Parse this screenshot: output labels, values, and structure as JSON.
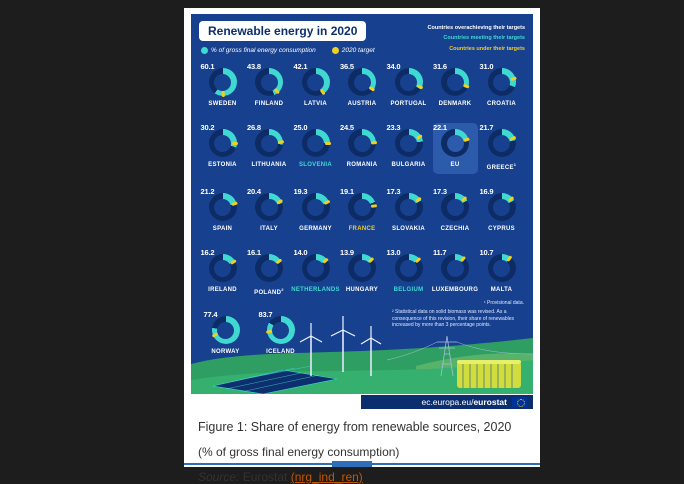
{
  "window": {
    "background": "#1d1d1d",
    "page_background": "#ffffff"
  },
  "infographic": {
    "title": "Renewable energy in 2020",
    "colors": {
      "panel": "#17418f",
      "teal": "#3fd9d2",
      "yellow": "#f2cf1d",
      "track": "#0d2c66",
      "eu_highlight": "#2d5bab",
      "white": "#ffffff"
    },
    "legend": [
      {
        "label": "% of gross final energy consumption",
        "color": "#3fd9d2"
      },
      {
        "label": "2020 target",
        "color": "#f2cf1d"
      }
    ],
    "status_legend": [
      {
        "label": "Countries overachieving their targets",
        "color": "#ffffff"
      },
      {
        "label": "Countries meeting their targets",
        "color": "#3fd9d2"
      },
      {
        "label": "Countries under their targets",
        "color": "#f2cf1d"
      }
    ],
    "footnotes": [
      "¹ Provisional data.",
      "² Statistical data on solid biomass was revised. As a consequence of this revision, their share of renewables increased by more than 3 percentage points."
    ],
    "footer_bar": {
      "prefix": "ec.europa.eu/",
      "bold": "eurostat"
    }
  },
  "caption": {
    "figure_line": "Figure 1: Share of energy from renewable sources, 2020",
    "subtitle": "(% of gross final energy consumption)",
    "source_label": "Source:",
    "source_name": "Eurostat",
    "source_link": "(nrg_ind_ren)"
  },
  "chart_data": {
    "type": "pie",
    "variant": "donut-gauge-grid",
    "title": "Renewable energy in 2020",
    "unit": "% of gross final energy consumption",
    "target_legend": "2020 target",
    "rows": [
      [
        {
          "name": "SWEDEN",
          "value": 60.1,
          "target": 49
        },
        {
          "name": "FINLAND",
          "value": 43.8,
          "target": 38
        },
        {
          "name": "LATVIA",
          "value": 42.1,
          "target": 40
        },
        {
          "name": "AUSTRIA",
          "value": 36.5,
          "target": 34
        },
        {
          "name": "PORTUGAL",
          "value": 34.0,
          "target": 31
        },
        {
          "name": "DENMARK",
          "value": 31.6,
          "target": 30
        },
        {
          "name": "CROATIA",
          "value": 31.0,
          "target": 20
        }
      ],
      [
        {
          "name": "ESTONIA",
          "value": 30.2,
          "target": 25
        },
        {
          "name": "LITHUANIA",
          "value": 26.8,
          "target": 23
        },
        {
          "name": "SLOVENIA",
          "value": 25.0,
          "target": 25,
          "status": "meeting"
        },
        {
          "name": "ROMANIA",
          "value": 24.5,
          "target": 24
        },
        {
          "name": "BULGARIA",
          "value": 23.3,
          "target": 16
        },
        {
          "name": "EU",
          "value": 22.1,
          "target": 20,
          "highlight": true
        },
        {
          "name": "GREECE",
          "value": 21.7,
          "target": 18,
          "sup": "1"
        }
      ],
      [
        {
          "name": "SPAIN",
          "value": 21.2,
          "target": 20
        },
        {
          "name": "ITALY",
          "value": 20.4,
          "target": 17
        },
        {
          "name": "GERMANY",
          "value": 19.3,
          "target": 18
        },
        {
          "name": "FRANCE",
          "value": 19.1,
          "target": 23,
          "status": "under"
        },
        {
          "name": "SLOVAKIA",
          "value": 17.3,
          "target": 14
        },
        {
          "name": "CZECHIA",
          "value": 17.3,
          "target": 13
        },
        {
          "name": "CYPRUS",
          "value": 16.9,
          "target": 13
        }
      ],
      [
        {
          "name": "IRELAND",
          "value": 16.2,
          "target": 16
        },
        {
          "name": "POLAND",
          "value": 16.1,
          "target": 15,
          "sup": "2"
        },
        {
          "name": "NETHERLANDS",
          "value": 14.0,
          "target": 14,
          "status": "meeting"
        },
        {
          "name": "HUNGARY",
          "value": 13.9,
          "target": 13
        },
        {
          "name": "BELGIUM",
          "value": 13.0,
          "target": 13,
          "status": "meeting"
        },
        {
          "name": "LUXEMBOURG",
          "value": 11.7,
          "target": 11
        },
        {
          "name": "MALTA",
          "value": 10.7,
          "target": 10
        }
      ],
      [
        {
          "name": "NORWAY",
          "value": 77.4,
          "target": 67.5
        },
        {
          "name": "ICELAND",
          "value": 83.7,
          "target": 72
        }
      ]
    ]
  }
}
